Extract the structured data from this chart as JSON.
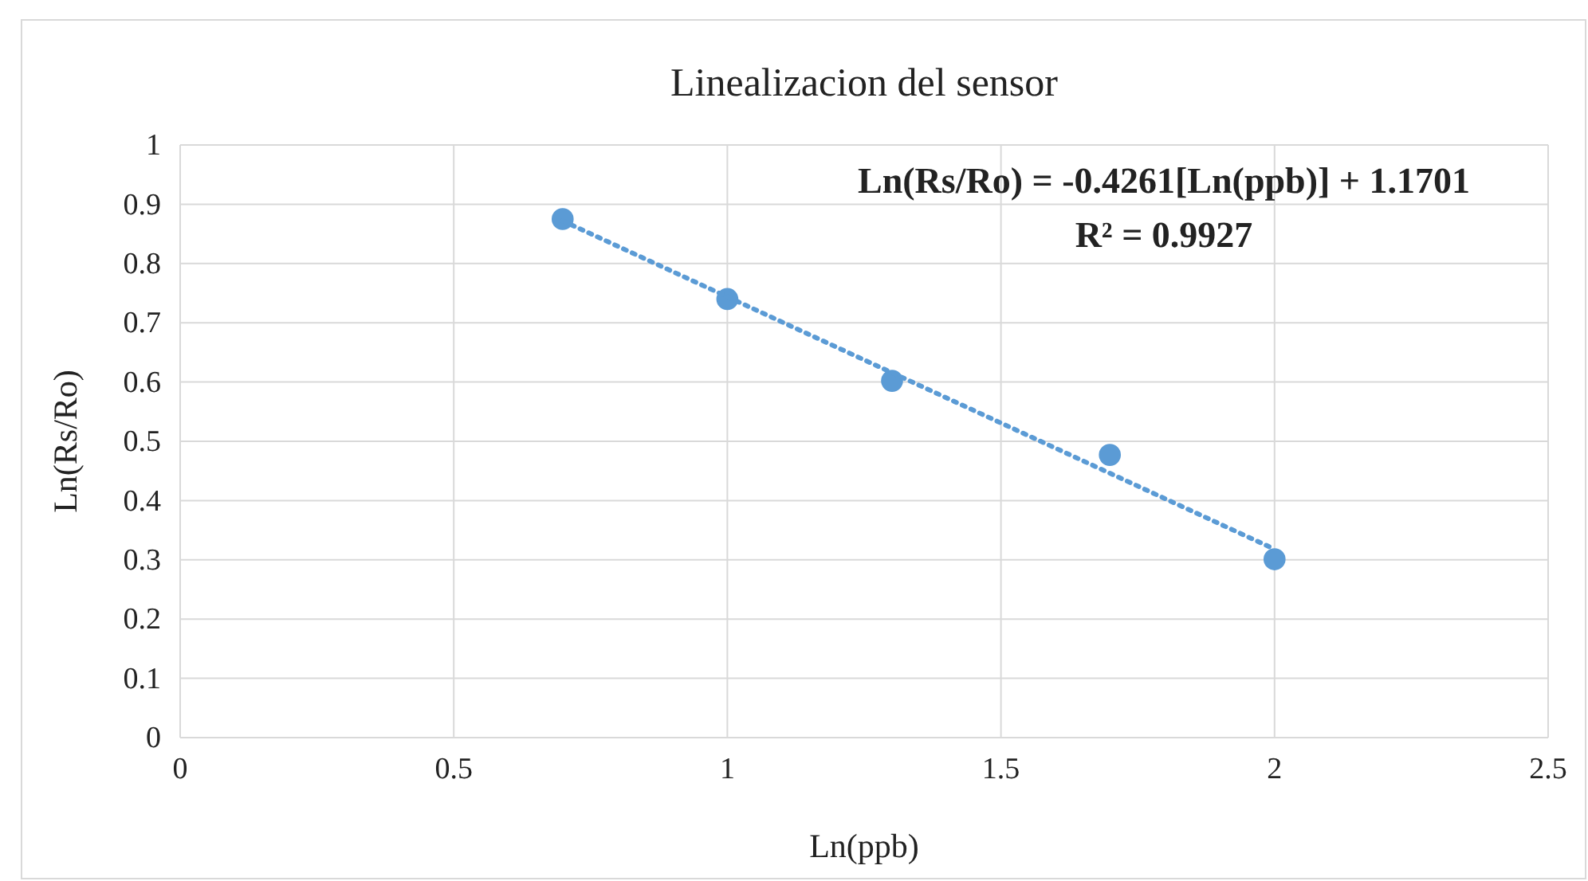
{
  "chart_data": {
    "type": "scatter",
    "title": "Linealizacion del sensor",
    "xlabel": "Ln(ppb)",
    "ylabel": "Ln(Rs/Ro)",
    "annotations": [
      "Ln(Rs/Ro) = -0.4261[Ln(ppb)] + 1.1701",
      "R² = 0.9927"
    ],
    "series": [
      {
        "color": "#5b9bd5",
        "x": [
          0.699,
          1,
          1.301,
          1.699,
          2
        ],
        "values": [
          0.875,
          0.74,
          0.602,
          0.477,
          0.301
        ],
        "marker": "circle"
      },
      {
        "type": "line",
        "color": "#5b9bd5",
        "x": [
          0.699,
          2
        ],
        "values": [
          0.872,
          0.318
        ],
        "line_style": "dotted",
        "marker": "none"
      }
    ],
    "xlim": [
      0,
      2.5
    ],
    "xticks": [
      0,
      0.5,
      1,
      1.5,
      2,
      2.5
    ],
    "ylim": [
      0,
      1
    ],
    "yticks": [
      0,
      0.1,
      0.2,
      0.3,
      0.4,
      0.5,
      0.6,
      0.7,
      0.8,
      0.9,
      1
    ],
    "grid": true
  }
}
